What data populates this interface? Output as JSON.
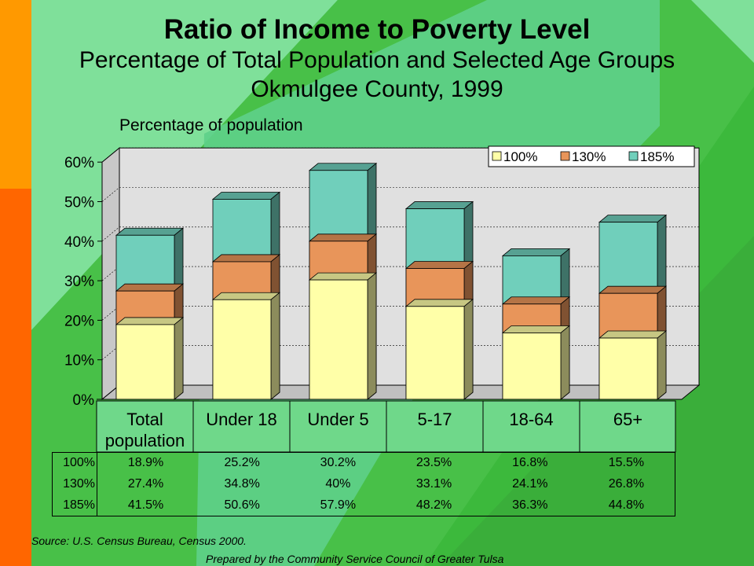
{
  "title": "Ratio of Income to Poverty Level",
  "subtitle_1": "Percentage of Total Population and Selected Age Groups",
  "subtitle_2": "Okmulgee County, 1999",
  "source": "Source:  U.S. Census Bureau, Census 2000.",
  "prepared_by": "Prepared by the Community Service Council of Greater Tulsa",
  "colors": {
    "100%": "#ffffa8",
    "130%": "#e8955a",
    "185%": "#70cfbb"
  },
  "chart_data": {
    "type": "bar",
    "stacked": false,
    "style": "3d-overlapping",
    "ylabel": "Percentage of population",
    "ylim": [
      0,
      60
    ],
    "yticks": [
      "0%",
      "10%",
      "20%",
      "30%",
      "40%",
      "50%",
      "60%"
    ],
    "categories": [
      [
        "Total",
        "population"
      ],
      [
        "Under 18"
      ],
      [
        "Under 5"
      ],
      [
        "5-17"
      ],
      [
        "18-64"
      ],
      [
        "65+"
      ]
    ],
    "series": [
      {
        "name": "100%",
        "values": [
          18.9,
          25.2,
          30.2,
          23.5,
          16.8,
          15.5
        ],
        "labels": [
          "18.9%",
          "25.2%",
          "30.2%",
          "23.5%",
          "16.8%",
          "15.5%"
        ]
      },
      {
        "name": "130%",
        "values": [
          27.4,
          34.8,
          40,
          33.1,
          24.1,
          26.8
        ],
        "labels": [
          "27.4%",
          "34.8%",
          "40%",
          "33.1%",
          "24.1%",
          "26.8%"
        ]
      },
      {
        "name": "185%",
        "values": [
          41.5,
          50.6,
          57.9,
          48.2,
          36.3,
          44.8
        ],
        "labels": [
          "41.5%",
          "50.6%",
          "57.9%",
          "48.2%",
          "36.3%",
          "44.8%"
        ]
      }
    ],
    "legend": "top-right",
    "grid": true
  }
}
